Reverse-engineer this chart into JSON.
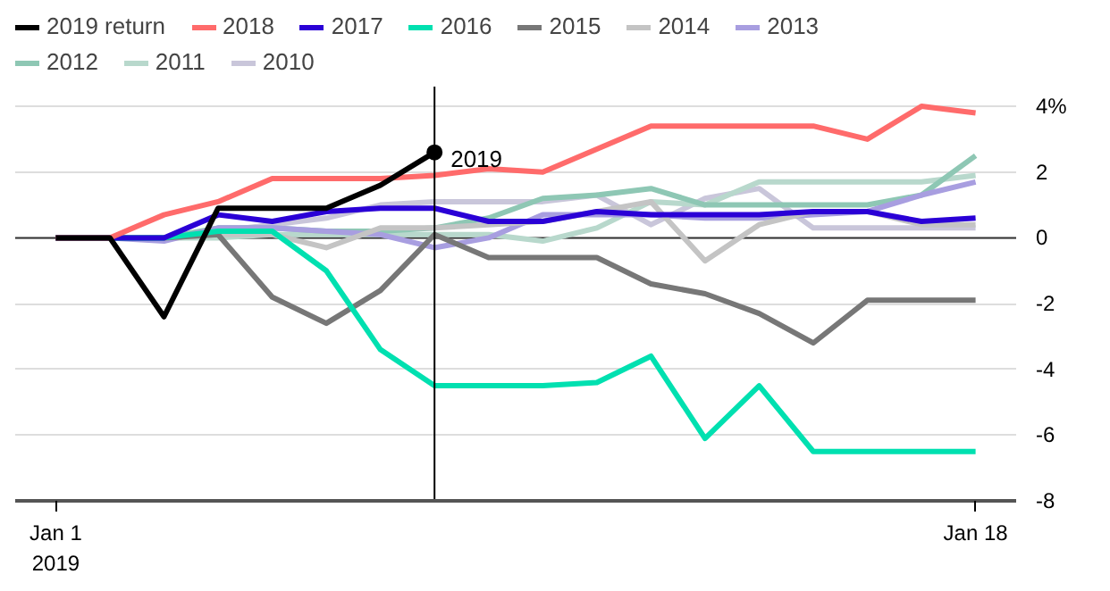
{
  "chart_data": {
    "type": "line",
    "x": [
      "2019-01-01",
      "2019-01-02",
      "2019-01-03",
      "2019-01-04",
      "2019-01-05",
      "2019-01-06",
      "2019-01-07",
      "2019-01-08",
      "2019-01-09",
      "2019-01-10",
      "2019-01-11",
      "2019-01-12",
      "2019-01-13",
      "2019-01-14",
      "2019-01-15",
      "2019-01-16",
      "2019-01-17",
      "2019-01-18"
    ],
    "series": [
      {
        "name": "2019 return",
        "color": "#000000",
        "values": [
          0,
          0,
          -2.4,
          0.9,
          0.9,
          0.9,
          1.6,
          2.6,
          null,
          null,
          null,
          null,
          null,
          null,
          null,
          null,
          null,
          null
        ]
      },
      {
        "name": "2018",
        "color": "#ff6b6b",
        "values": [
          0,
          0,
          0.7,
          1.1,
          1.8,
          1.8,
          1.8,
          1.9,
          2.1,
          2.0,
          2.7,
          3.4,
          3.4,
          3.4,
          3.4,
          3.0,
          4.0,
          3.8
        ]
      },
      {
        "name": "2017",
        "color": "#2a00d6",
        "values": [
          0,
          0,
          0,
          0.7,
          0.5,
          0.8,
          0.9,
          0.9,
          0.5,
          0.5,
          0.8,
          0.7,
          0.7,
          0.7,
          0.8,
          0.8,
          0.5,
          0.6
        ]
      },
      {
        "name": "2016",
        "color": "#00e0b0",
        "values": [
          0,
          0,
          0,
          0.2,
          0.2,
          -1.0,
          -3.4,
          -4.5,
          -4.5,
          -4.5,
          -4.4,
          -3.6,
          -6.1,
          -4.5,
          -6.5,
          -6.5,
          -6.5,
          -6.5
        ]
      },
      {
        "name": "2015",
        "color": "#777777",
        "values": [
          0,
          0,
          0,
          0.1,
          -1.8,
          -2.6,
          -1.6,
          0.1,
          -0.6,
          -0.6,
          -0.6,
          -1.4,
          -1.7,
          -2.3,
          -3.2,
          -1.9,
          -1.9,
          -1.9
        ]
      },
      {
        "name": "2014",
        "color": "#c4c4c4",
        "values": [
          0,
          0,
          0,
          0.1,
          0.1,
          -0.3,
          0.3,
          0.3,
          0.4,
          0.5,
          0.8,
          1.1,
          -0.7,
          0.4,
          0.8,
          0.8,
          0.4,
          0.4
        ]
      },
      {
        "name": "2013",
        "color": "#a89ee0",
        "values": [
          0,
          0,
          -0.1,
          0.3,
          0.3,
          0.2,
          0.1,
          -0.3,
          0,
          0.7,
          0.7,
          0.7,
          0.6,
          0.6,
          0.7,
          0.8,
          1.3,
          1.7
        ]
      },
      {
        "name": "2012",
        "color": "#8ec7b4",
        "values": [
          0,
          0,
          0,
          0.3,
          0.3,
          0.2,
          0.2,
          0.3,
          0.6,
          1.2,
          1.3,
          1.5,
          1.0,
          1.0,
          1.0,
          1.0,
          1.3,
          2.5
        ]
      },
      {
        "name": "2011",
        "color": "#b8d8cc",
        "values": [
          0,
          0,
          0,
          0,
          0.1,
          0.1,
          0.1,
          0.1,
          0.1,
          -0.1,
          0.3,
          1.1,
          1.0,
          1.7,
          1.7,
          1.7,
          1.7,
          1.9
        ]
      },
      {
        "name": "2010",
        "color": "#c9c6da",
        "values": [
          0,
          0,
          0,
          0.2,
          0.4,
          0.6,
          1.0,
          1.1,
          1.1,
          1.1,
          1.3,
          0.4,
          1.2,
          1.5,
          0.3,
          0.3,
          0.3,
          0.3
        ]
      }
    ],
    "xlim": [
      "2018-12-31T06:00",
      "2019-01-18T18:00"
    ],
    "xticks": [
      {
        "value": "2019-01-01",
        "label": "Jan 1\n2019"
      },
      {
        "value": "2019-01-18",
        "label": "Jan 18"
      }
    ],
    "ylim": [
      -8,
      4.6
    ],
    "yticks": [
      {
        "value": 4,
        "label": "4%"
      },
      2,
      0,
      -2,
      -4,
      -6,
      -8
    ],
    "grid": "y",
    "legend": "top",
    "ref_lines": [
      {
        "axis": "y",
        "value": 0,
        "color": "#333333"
      },
      {
        "axis": "x",
        "value": "2019-01-08",
        "color": "#000000"
      }
    ],
    "annotations": [
      {
        "text": "2019",
        "x": "2019-01-08",
        "y": 2.6
      }
    ]
  }
}
